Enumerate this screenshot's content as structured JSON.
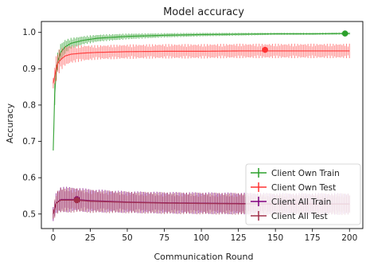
{
  "chart_data": {
    "type": "line",
    "title": "Model accuracy",
    "xlabel": "Communication Round",
    "ylabel": "Accuracy",
    "xlim": [
      -8,
      209
    ],
    "ylim": [
      0.46,
      1.03
    ],
    "xticks": [
      0,
      25,
      50,
      75,
      100,
      125,
      150,
      175,
      200
    ],
    "yticks": [
      0.5,
      0.6,
      0.7,
      0.8,
      0.9,
      1.0
    ],
    "ytick_labels": [
      "0.5",
      "0.6",
      "0.7",
      "0.8",
      "0.9",
      "1.0"
    ],
    "grid": false,
    "legend_position": "lower-right",
    "series": [
      {
        "name": "Client Own Train",
        "color": "#2ca02c",
        "alpha": 0.75,
        "x": [
          0,
          1,
          2,
          3,
          5,
          8,
          12,
          20,
          30,
          50,
          75,
          100,
          125,
          150,
          175,
          200
        ],
        "y": [
          0.675,
          0.83,
          0.89,
          0.92,
          0.945,
          0.96,
          0.97,
          0.978,
          0.984,
          0.989,
          0.992,
          0.994,
          0.995,
          0.996,
          0.996,
          0.997
        ],
        "err": [
          0.0,
          0.03,
          0.03,
          0.025,
          0.025,
          0.02,
          0.015,
          0.012,
          0.01,
          0.008,
          0.006,
          0.005,
          0.004,
          0.003,
          0.003,
          0.003
        ],
        "best": {
          "x": 197,
          "y": 0.997
        }
      },
      {
        "name": "Client Own Test",
        "color": "#ff3333",
        "alpha": 0.6,
        "x": [
          0,
          1,
          2,
          3,
          5,
          8,
          12,
          20,
          30,
          50,
          75,
          100,
          125,
          150,
          175,
          200
        ],
        "y": [
          0.86,
          0.88,
          0.9,
          0.915,
          0.925,
          0.935,
          0.94,
          0.943,
          0.945,
          0.947,
          0.948,
          0.948,
          0.949,
          0.949,
          0.949,
          0.949
        ],
        "err": [
          0.015,
          0.03,
          0.035,
          0.035,
          0.03,
          0.028,
          0.025,
          0.022,
          0.02,
          0.02,
          0.02,
          0.02,
          0.02,
          0.02,
          0.02,
          0.02
        ],
        "best": {
          "x": 143,
          "y": 0.952
        }
      },
      {
        "name": "Client All Train",
        "color": "#800080",
        "alpha": 0.75,
        "x": [
          0,
          2,
          5,
          10,
          16,
          25,
          50,
          75,
          100,
          125,
          150,
          175,
          200
        ],
        "y": [
          0.5,
          0.53,
          0.54,
          0.54,
          0.54,
          0.537,
          0.533,
          0.531,
          0.53,
          0.529,
          0.528,
          0.528,
          0.528
        ],
        "err": [
          0.02,
          0.03,
          0.035,
          0.035,
          0.033,
          0.032,
          0.03,
          0.03,
          0.03,
          0.03,
          0.03,
          0.03,
          0.03
        ],
        "best": {
          "x": 16,
          "y": 0.541
        }
      },
      {
        "name": "Client All Test",
        "color": "#a0304a",
        "alpha": 0.7,
        "x": [
          0,
          2,
          5,
          10,
          16,
          25,
          50,
          75,
          100,
          125,
          150,
          175,
          200
        ],
        "y": [
          0.5,
          0.53,
          0.538,
          0.538,
          0.538,
          0.535,
          0.532,
          0.53,
          0.529,
          0.528,
          0.527,
          0.527,
          0.527
        ],
        "err": [
          0.02,
          0.03,
          0.035,
          0.035,
          0.033,
          0.032,
          0.03,
          0.03,
          0.03,
          0.03,
          0.03,
          0.03,
          0.03
        ],
        "best": {
          "x": 16,
          "y": 0.538
        }
      }
    ]
  }
}
